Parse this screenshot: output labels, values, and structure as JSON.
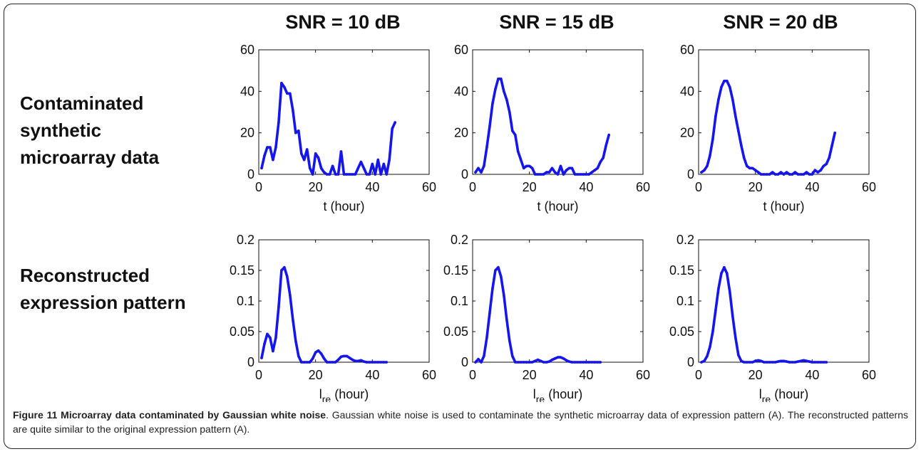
{
  "columns": [
    "SNR = 10 dB",
    "SNR = 15 dB",
    "SNR = 20 dB"
  ],
  "row_labels": [
    [
      "Contaminated",
      "synthetic",
      "microarray data"
    ],
    [
      "Reconstructed",
      "expression pattern"
    ]
  ],
  "caption": {
    "title": "Figure 11 Microarray data contaminated by Gaussian white noise",
    "body": ". Gaussian white noise is used to contaminate the synthetic microarray data of expression pattern (A). The reconstructed patterns are quite similar to the original expression pattern (A)."
  },
  "colors": {
    "line": "#1515ee",
    "axis": "#111111"
  },
  "chart_data": [
    {
      "type": "line",
      "row": "top",
      "column": "SNR = 10 dB",
      "xlabel": "t (hour)",
      "xlim": [
        0,
        60
      ],
      "ylim": [
        0,
        60
      ],
      "xticks": [
        0,
        20,
        40,
        60
      ],
      "yticks": [
        0,
        20,
        40,
        60
      ],
      "x": [
        1,
        2,
        3,
        4,
        5,
        6,
        7,
        8,
        9,
        10,
        11,
        12,
        13,
        14,
        15,
        16,
        17,
        18,
        19,
        20,
        21,
        22,
        23,
        24,
        25,
        26,
        27,
        28,
        29,
        30,
        31,
        32,
        33,
        34,
        35,
        36,
        37,
        38,
        39,
        40,
        41,
        42,
        43,
        44,
        45,
        46,
        47,
        48
      ],
      "y": [
        3,
        9,
        13,
        13,
        7,
        13,
        25,
        44,
        42,
        39,
        39,
        31,
        20,
        21,
        10,
        7,
        12,
        3,
        0,
        10,
        8,
        3,
        1,
        0,
        0,
        4,
        0,
        0,
        11,
        0,
        0,
        0,
        0,
        0,
        3,
        6,
        3,
        0,
        0,
        5,
        0,
        7,
        0,
        5,
        0,
        7,
        22,
        25
      ]
    },
    {
      "type": "line",
      "row": "top",
      "column": "SNR = 15 dB",
      "xlabel": "t (hour)",
      "xlim": [
        0,
        60
      ],
      "ylim": [
        0,
        60
      ],
      "xticks": [
        0,
        20,
        40,
        60
      ],
      "yticks": [
        0,
        20,
        40,
        60
      ],
      "x": [
        1,
        2,
        3,
        4,
        5,
        6,
        7,
        8,
        9,
        10,
        11,
        12,
        13,
        14,
        15,
        16,
        17,
        18,
        19,
        20,
        21,
        22,
        23,
        24,
        25,
        26,
        27,
        28,
        29,
        30,
        31,
        32,
        33,
        34,
        35,
        36,
        37,
        38,
        39,
        40,
        41,
        42,
        43,
        44,
        45,
        46,
        47,
        48
      ],
      "y": [
        1,
        3,
        1,
        4,
        13,
        23,
        34,
        41,
        46,
        46,
        40,
        36,
        30,
        21,
        19,
        11,
        7,
        3,
        4,
        4,
        3,
        0,
        0,
        0,
        0,
        1,
        1,
        3,
        1,
        0,
        4,
        0,
        2,
        3,
        3,
        0,
        0,
        0,
        0,
        0,
        0,
        1,
        2,
        3,
        6,
        8,
        14,
        19
      ]
    },
    {
      "type": "line",
      "row": "top",
      "column": "SNR = 20 dB",
      "xlabel": "t (hour)",
      "xlim": [
        0,
        60
      ],
      "ylim": [
        0,
        60
      ],
      "xticks": [
        0,
        20,
        40,
        60
      ],
      "yticks": [
        0,
        20,
        40,
        60
      ],
      "x": [
        1,
        2,
        3,
        4,
        5,
        6,
        7,
        8,
        9,
        10,
        11,
        12,
        13,
        14,
        15,
        16,
        17,
        18,
        19,
        20,
        21,
        22,
        23,
        24,
        25,
        26,
        27,
        28,
        29,
        30,
        31,
        32,
        33,
        34,
        35,
        36,
        37,
        38,
        39,
        40,
        41,
        42,
        43,
        44,
        45,
        46,
        47,
        48
      ],
      "y": [
        1,
        2,
        4,
        9,
        17,
        28,
        36,
        42,
        45,
        45,
        42,
        36,
        28,
        21,
        14,
        8,
        4,
        3,
        3,
        2,
        1,
        0,
        0,
        0,
        0,
        1,
        0,
        0,
        1,
        0,
        1,
        0,
        0,
        1,
        0,
        0,
        0,
        1,
        0,
        0,
        2,
        1,
        2,
        4,
        5,
        8,
        14,
        20
      ]
    },
    {
      "type": "line",
      "row": "bottom",
      "column": "SNR = 10 dB",
      "xlabel": "l_re (hour)",
      "xlim": [
        0,
        60
      ],
      "ylim": [
        0,
        0.2
      ],
      "xticks": [
        0,
        20,
        40,
        60
      ],
      "yticks": [
        0,
        0.05,
        0.1,
        0.15,
        0.2
      ],
      "x": [
        1,
        2,
        3,
        4,
        5,
        6,
        7,
        8,
        9,
        10,
        11,
        12,
        13,
        14,
        15,
        16,
        17,
        18,
        19,
        20,
        21,
        22,
        23,
        24,
        25,
        26,
        27,
        28,
        29,
        30,
        31,
        32,
        33,
        34,
        35,
        36,
        37,
        38,
        39,
        40,
        41,
        42,
        43,
        44,
        45
      ],
      "y": [
        0.007,
        0.03,
        0.046,
        0.04,
        0.018,
        0.04,
        0.09,
        0.15,
        0.155,
        0.14,
        0.11,
        0.07,
        0.035,
        0.01,
        0,
        0,
        0,
        0,
        0.006,
        0.016,
        0.019,
        0.014,
        0.006,
        0,
        0,
        0,
        0,
        0.004,
        0.009,
        0.01,
        0.01,
        0.007,
        0.004,
        0.002,
        0.002,
        0.003,
        0.001,
        0,
        0,
        0,
        0,
        0,
        0,
        0,
        0
      ]
    },
    {
      "type": "line",
      "row": "bottom",
      "column": "SNR = 15 dB",
      "xlabel": "l_re (hour)",
      "xlim": [
        0,
        60
      ],
      "ylim": [
        0,
        0.2
      ],
      "xticks": [
        0,
        20,
        40,
        60
      ],
      "yticks": [
        0,
        0.05,
        0.1,
        0.15,
        0.2
      ],
      "x": [
        1,
        2,
        3,
        4,
        5,
        6,
        7,
        8,
        9,
        10,
        11,
        12,
        13,
        14,
        15,
        16,
        17,
        18,
        19,
        20,
        21,
        22,
        23,
        24,
        25,
        26,
        27,
        28,
        29,
        30,
        31,
        32,
        33,
        34,
        35,
        36,
        37,
        38,
        39,
        40,
        41,
        42,
        43,
        44,
        45
      ],
      "y": [
        0,
        0.005,
        0,
        0.01,
        0.04,
        0.08,
        0.12,
        0.15,
        0.155,
        0.14,
        0.11,
        0.07,
        0.035,
        0.01,
        0,
        0,
        0,
        0,
        0,
        0,
        0,
        0.002,
        0.004,
        0.002,
        0,
        0,
        0.001,
        0.004,
        0.006,
        0.008,
        0.008,
        0.006,
        0.003,
        0.001,
        0,
        0,
        0,
        0,
        0,
        0,
        0,
        0,
        0,
        0,
        0
      ]
    },
    {
      "type": "line",
      "row": "bottom",
      "column": "SNR = 20 dB",
      "xlabel": "l_re (hour)",
      "xlim": [
        0,
        60
      ],
      "ylim": [
        0,
        0.2
      ],
      "xticks": [
        0,
        20,
        40,
        60
      ],
      "yticks": [
        0,
        0.05,
        0.1,
        0.15,
        0.2
      ],
      "x": [
        1,
        2,
        3,
        4,
        5,
        6,
        7,
        8,
        9,
        10,
        11,
        12,
        13,
        14,
        15,
        16,
        17,
        18,
        19,
        20,
        21,
        22,
        23,
        24,
        25,
        26,
        27,
        28,
        29,
        30,
        31,
        32,
        33,
        34,
        35,
        36,
        37,
        38,
        39,
        40,
        41,
        42,
        43,
        44,
        45
      ],
      "y": [
        0,
        0.002,
        0.01,
        0.025,
        0.05,
        0.085,
        0.12,
        0.145,
        0.155,
        0.145,
        0.115,
        0.075,
        0.04,
        0.012,
        0.002,
        0,
        0,
        0,
        0,
        0.002,
        0.003,
        0.002,
        0,
        0,
        0,
        0,
        0,
        0.001,
        0.002,
        0.002,
        0.001,
        0,
        0,
        0,
        0.001,
        0.002,
        0.003,
        0.002,
        0.001,
        0,
        0,
        0,
        0,
        0,
        0
      ]
    }
  ]
}
